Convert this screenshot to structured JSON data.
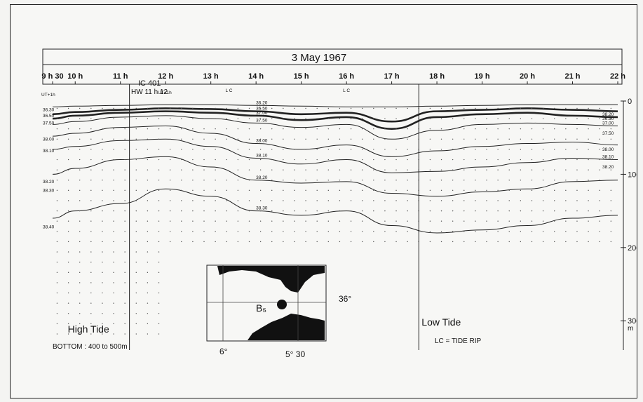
{
  "chart_data": {
    "type": "line",
    "title": "3 May 1967",
    "x_tick_labels": [
      "9 h 30",
      "10 h",
      "11 h",
      "12 h",
      "13 h",
      "14 h",
      "15 h",
      "16 h",
      "17 h",
      "18 h",
      "19 h",
      "20 h",
      "21 h",
      "22 h"
    ],
    "x_ticks_hours": [
      9.5,
      10,
      11,
      12,
      13,
      14,
      15,
      16,
      17,
      18,
      19,
      20,
      21,
      22
    ],
    "xlim_hours": [
      9.5,
      22
    ],
    "y_tick_labels": [
      "0",
      "100",
      "200",
      "300"
    ],
    "y_ticks_m": [
      0,
      100,
      200,
      300
    ],
    "ylim_m": [
      0,
      340
    ],
    "y_unit": "m",
    "top_annotations": {
      "ut_left": "UT+1h",
      "ic": "IC 401",
      "hw": "HW 11 h 12",
      "ut_hw": "UT+1h",
      "lc_labels": [
        "L C",
        "L C"
      ],
      "lc_hours": [
        13.4,
        16.0
      ]
    },
    "tide_markers": [
      {
        "label": "High Tide",
        "hour": 11.2
      },
      {
        "label": "Low Tide",
        "hour": 17.6
      }
    ],
    "bottom_note": "BOTTOM : 400 to 500m",
    "legend_note": "LC = TIDE RIP",
    "left_isoline_labels": [
      "36.30",
      "36.50",
      "37.50",
      "38.00",
      "38.10",
      "38.20",
      "38.30",
      "38.40"
    ],
    "right_isoline_labels": [
      "38.20",
      "36.50",
      "37.00",
      "37.50",
      "38.00",
      "38.10",
      "38.20"
    ],
    "contour_levels": [
      {
        "label": "36.20",
        "depths_m": [
          8,
          7,
          6,
          5,
          5,
          6,
          7,
          8,
          8,
          7,
          6,
          5,
          5,
          5
        ]
      },
      {
        "label": "36.50",
        "depths_m": [
          18,
          15,
          12,
          10,
          11,
          14,
          18,
          16,
          28,
          14,
          12,
          10,
          12,
          14
        ]
      },
      {
        "label": "37.00",
        "depths_m": [
          24,
          20,
          16,
          14,
          16,
          20,
          26,
          22,
          38,
          22,
          18,
          16,
          20,
          22
        ]
      },
      {
        "label": "37.50",
        "depths_m": [
          32,
          28,
          22,
          20,
          24,
          30,
          36,
          32,
          52,
          40,
          32,
          30,
          32,
          34
        ]
      },
      {
        "label": "38.00",
        "depths_m": [
          48,
          44,
          36,
          34,
          44,
          58,
          66,
          60,
          76,
          68,
          62,
          58,
          56,
          60
        ]
      },
      {
        "label": "38.10",
        "depths_m": [
          66,
          62,
          54,
          52,
          62,
          78,
          86,
          80,
          98,
          96,
          90,
          84,
          78,
          80
        ]
      },
      {
        "label": "38.20",
        "depths_m": [
          100,
          92,
          80,
          76,
          90,
          108,
          112,
          110,
          126,
          130,
          124,
          120,
          110,
          108
        ]
      },
      {
        "label": "38.30",
        "depths_m": [
          160,
          150,
          140,
          120,
          130,
          150,
          156,
          150,
          170,
          180,
          176,
          170,
          160,
          156
        ]
      }
    ],
    "grid": false,
    "inset_map": {
      "station_label": "B₅",
      "lat_label": "36°",
      "lon_labels": [
        "6°",
        "5° 30"
      ]
    }
  }
}
